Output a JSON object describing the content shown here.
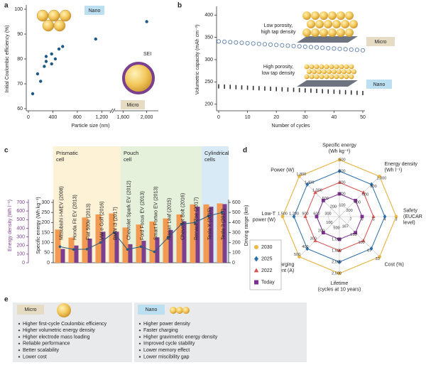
{
  "chart_data": [
    {
      "panel": "a",
      "type": "scatter",
      "xlabel": "Particle size (nm)",
      "ylabel": "Initial Coulombic efficiency (%)",
      "x": [
        70,
        150,
        200,
        260,
        290,
        290,
        380,
        380,
        440,
        500,
        560,
        1100,
        2000
      ],
      "values": [
        66,
        74,
        71,
        77,
        79,
        81,
        78,
        82,
        80,
        84,
        85,
        88,
        95
      ],
      "color": "#1f5a85",
      "xlim": [
        0,
        2100
      ],
      "xbreak": [
        1300,
        1500
      ],
      "xticks": [
        0,
        400,
        800,
        {
          "value": 1200,
          "label": "1,200"
        },
        {
          "value": 1600,
          "label": "1,600"
        },
        {
          "value": 2000,
          "label": "2,000"
        }
      ],
      "ylim": [
        60,
        100
      ],
      "yticks": [
        60,
        70,
        80,
        90,
        100
      ],
      "annotations": [
        "Nano",
        "SEI",
        "Micro"
      ]
    },
    {
      "panel": "b",
      "type": "scatter",
      "xlabel": "Number of cycles",
      "ylabel": "Volumetric capacity (mAh cm⁻³)",
      "x": [
        0,
        2,
        4,
        6,
        8,
        10,
        12,
        14,
        16,
        18,
        20,
        22,
        24,
        26,
        28,
        30,
        32,
        34,
        36,
        38,
        40,
        42,
        44,
        46,
        48,
        50
      ],
      "series": [
        {
          "name": "Micro",
          "color": "#5b7fae",
          "marker": "open-circle",
          "values": [
            341,
            340.2,
            339.4,
            338.6,
            337.8,
            337,
            336.2,
            335.4,
            334.6,
            333.8,
            333,
            332.2,
            331.4,
            330.6,
            329.8,
            329,
            328.2,
            327.4,
            326.6,
            325.8,
            325,
            324.2,
            323.4,
            322.6,
            321.8,
            321
          ]
        },
        {
          "name": "Nano",
          "color": "#333333",
          "marker": "dash",
          "values": [
            240,
            239.4,
            238.8,
            238.2,
            237.6,
            237,
            236.4,
            235.8,
            235.2,
            234.6,
            234,
            233.4,
            232.8,
            232.2,
            231.6,
            231,
            230.4,
            229.8,
            229.2,
            228.6,
            228,
            227.4,
            226.8,
            226.2,
            225.6,
            225
          ]
        }
      ],
      "xlim": [
        0,
        50
      ],
      "xticks": [
        0,
        10,
        20,
        30,
        40,
        50
      ],
      "ylim": [
        190,
        410
      ],
      "yticks": [
        200,
        250,
        300,
        350,
        400
      ],
      "annotations": [
        [
          "Low porosity,",
          "high tap density"
        ],
        [
          "High porosity,",
          "low tap density"
        ]
      ]
    },
    {
      "panel": "c",
      "type": "bar",
      "groups": [
        {
          "name": [
            "Prismatic",
            "cell"
          ],
          "color": "#fdf1d6",
          "categories": [
            "Mitsubishi i-MiEV (2008)",
            "Honda Fit EV (2013)",
            "Fiat 500e (2013)",
            "VW e-Golf (2016)",
            "BMW i3 (2017)"
          ]
        },
        {
          "name": [
            "Pouch",
            "cell"
          ],
          "color": "#e6f1dc",
          "categories": [
            "Chevrolet Spark EV (2012)",
            "Ford Focus EV (2013)",
            "Smart Fortwo EV (2013)",
            "Nissan Leaf (2015)",
            "Chevrolet Bolt (2016)",
            "Renault Zoe (2017)"
          ]
        },
        {
          "name": [
            "Cylindrical",
            "cells"
          ],
          "color": "#d8eaf6",
          "categories": [
            "Tesla X (2015)",
            "Tesla 3 (2017)"
          ]
        }
      ],
      "series": [
        {
          "name": "Specific energy (Wh kg⁻¹)",
          "type": "bar",
          "axis": "y",
          "color": "#f29a52",
          "values": [
            165,
            125,
            225,
            240,
            245,
            175,
            190,
            205,
            220,
            240,
            290,
            290,
            295
          ]
        },
        {
          "name": "Energy density (Wh l⁻¹)",
          "type": "bar",
          "axis": "y3",
          "color": "#7b3f8f",
          "values": [
            160,
            200,
            280,
            360,
            360,
            215,
            255,
            295,
            380,
            480,
            650,
            650,
            680
          ]
        },
        {
          "name": "Driving range (km)",
          "type": "line",
          "axis": "y2",
          "color": "#2b5a7a",
          "values": [
            160,
            132,
            135,
            201,
            300,
            132,
            160,
            109,
            250,
            383,
            400,
            465,
            499
          ]
        }
      ],
      "ylim": [
        0,
        300
      ],
      "yticks": [
        0,
        50,
        100,
        150,
        200,
        250,
        300
      ],
      "y2lim": [
        0,
        600
      ],
      "y2ticks": [
        0,
        100,
        200,
        300,
        400,
        500,
        600
      ],
      "y3lim": [
        0,
        700
      ],
      "y3ticks": [
        0,
        100,
        200,
        300,
        400,
        500,
        600,
        700
      ]
    },
    {
      "panel": "d",
      "type": "radar",
      "legend": "bottom-left",
      "axes": [
        {
          "name": [
            "Specific energy",
            "(Wh kg⁻¹)"
          ],
          "lim": [
            0,
            500
          ],
          "ticks": [
            100,
            200,
            300,
            400,
            500
          ]
        },
        {
          "name": [
            "Energy density",
            "(Wh l⁻¹)"
          ],
          "lim": [
            0,
            1000
          ],
          "ticks": [
            200,
            400,
            600,
            800,
            {
              "value": 1000,
              "label": "1,000"
            }
          ]
        },
        {
          "name": [
            "Safety",
            "(EUCAR",
            "level)"
          ],
          "lim": [
            8,
            3
          ],
          "ticks": [
            7,
            6,
            5,
            4,
            3
          ]
        },
        {
          "name": [
            "Cost (%)"
          ],
          "lim": [
            200,
            33
          ],
          "ticks": [
            167,
            133,
            100,
            67,
            33
          ]
        },
        {
          "name": [
            "Lifetime",
            "(cycles at 10 years)"
          ],
          "lim": [
            0,
            2500
          ],
          "ticks": [
            500,
            {
              "value": 1000,
              "label": "1,000"
            },
            {
              "value": 1500,
              "label": "1,500"
            },
            {
              "value": 2000,
              "label": "2,000"
            },
            {
              "value": 2500,
              "label": "2,500"
            }
          ]
        },
        {
          "name": [
            "Charging",
            "current (A)"
          ],
          "lim": [
            0,
            500
          ],
          "ticks": [
            100,
            200,
            300,
            400,
            500
          ]
        },
        {
          "name": [
            "Low-T",
            "power (W)"
          ],
          "lim": [
            0,
            1500
          ],
          "ticks": [
            300,
            600,
            900,
            {
              "value": 1200,
              "label": "1,200"
            },
            {
              "value": 1500,
              "label": "1,500"
            }
          ]
        },
        {
          "name": [
            "Power (W)"
          ],
          "lim": [
            -200,
            1800
          ],
          "ticks": [
            200,
            600,
            {
              "value": 1000,
              "label": "1,000"
            },
            {
              "value": 1400,
              "label": "1,400"
            },
            {
              "value": 1800,
              "label": "1,800"
            }
          ]
        }
      ],
      "series": [
        {
          "name": "2030",
          "color": "#e9b84a",
          "marker": "circle",
          "values": [
            500,
            1000,
            3,
            33,
            2500,
            500,
            1500,
            1800
          ]
        },
        {
          "name": "2025",
          "color": "#2a6fa8",
          "marker": "diamond",
          "values": [
            400,
            800,
            4,
            67,
            2000,
            400,
            1200,
            1400
          ]
        },
        {
          "name": "2022",
          "color": "#d9534f",
          "marker": "triangle",
          "values": [
            300,
            600,
            5,
            100,
            1500,
            300,
            900,
            1000
          ]
        },
        {
          "name": "Today",
          "color": "#7b2f8f",
          "marker": "square",
          "values": [
            200,
            400,
            6,
            133,
            1000,
            200,
            600,
            600
          ]
        }
      ]
    }
  ],
  "panel_e": {
    "panel": "e",
    "boxes": [
      {
        "title": "Micro",
        "items": [
          "Higher first-cycle Coulombic efficiency",
          "Higher volumetric energy density",
          "Higher electrode mass loading",
          "Reliable performance",
          "Better scalability",
          "Lower cost"
        ]
      },
      {
        "title": "Nano",
        "items": [
          "Higher power density",
          "Faster charging",
          "Higher gravimetric energy density",
          "Improved cycle stability",
          "Lower memory effect",
          "Lower miscibility gap"
        ]
      }
    ]
  }
}
